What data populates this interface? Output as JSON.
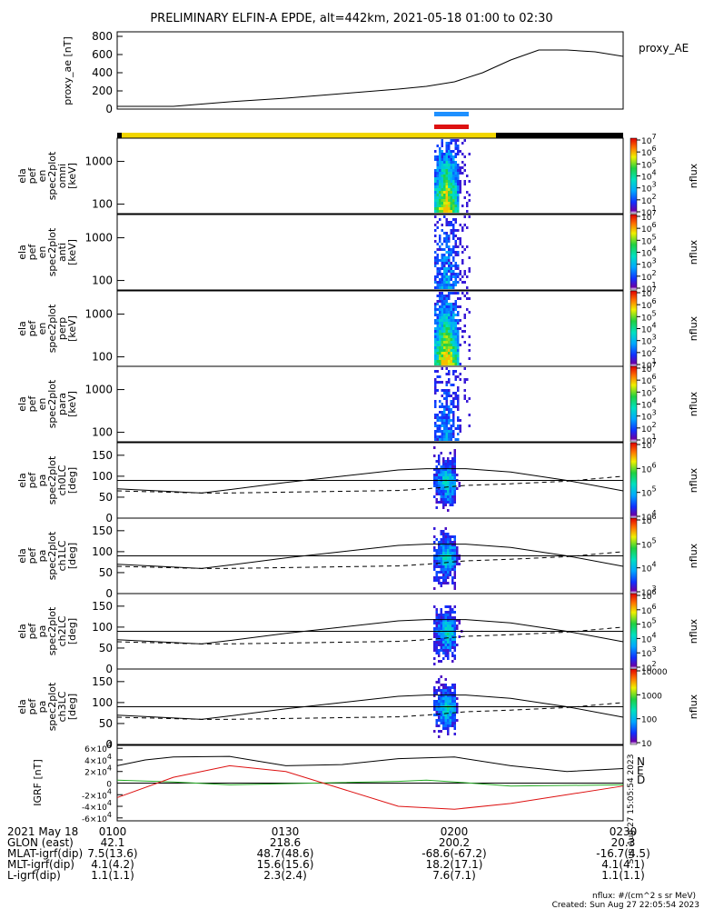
{
  "chart_data": {
    "title": "PRELIMINARY ELFIN-A EPDE, alt=442km, 2021-05-18 01:00 to 02:30",
    "x_time_range": [
      "0100",
      "0230"
    ],
    "ae_panel": {
      "type": "line",
      "ylabel": "proxy_ae [nT]",
      "legend": "proxy_AE",
      "yticks": [
        "0",
        "200",
        "400",
        "600",
        "800"
      ],
      "ylim": [
        0,
        850
      ],
      "x_min": [
        0,
        10,
        20,
        30,
        40,
        50,
        55,
        60,
        65,
        70,
        75,
        80,
        85,
        90
      ],
      "values": [
        30,
        30,
        80,
        120,
        170,
        220,
        250,
        300,
        400,
        540,
        650,
        650,
        630,
        580
      ]
    },
    "spectrogram_panels": [
      {
        "line1": "ela",
        "line2": "pef",
        "line3": "en",
        "line4": "spec2plot",
        "line5": "omni",
        "unit": "[keV]",
        "yticks": [
          "100",
          "1000"
        ],
        "cb_ticks": [
          "10",
          "10",
          "10",
          "10",
          "10",
          "10",
          "10"
        ],
        "cb_exps": [
          "1",
          "2",
          "3",
          "4",
          "5",
          "6",
          "7"
        ],
        "cb_label": "nflux",
        "intensity": 1.0
      },
      {
        "line1": "ela",
        "line2": "pef",
        "line3": "en",
        "line4": "spec2plot",
        "line5": "anti",
        "unit": "[keV]",
        "yticks": [
          "100",
          "1000"
        ],
        "cb_ticks": [
          "10",
          "10",
          "10",
          "10",
          "10",
          "10",
          "10"
        ],
        "cb_exps": [
          "1",
          "2",
          "3",
          "4",
          "5",
          "6",
          "7"
        ],
        "cb_label": "nflux",
        "intensity": 0.35
      },
      {
        "line1": "ela",
        "line2": "pef",
        "line3": "en",
        "line4": "spec2plot",
        "line5": "perp",
        "unit": "[keV]",
        "yticks": [
          "100",
          "1000"
        ],
        "cb_ticks": [
          "10",
          "10",
          "10",
          "10",
          "10",
          "10",
          "10"
        ],
        "cb_exps": [
          "1",
          "2",
          "3",
          "4",
          "5",
          "6",
          "7"
        ],
        "cb_label": "nflux",
        "intensity": 1.0
      },
      {
        "line1": "ela",
        "line2": "pef",
        "line3": "en",
        "line4": "spec2plot",
        "line5": "para",
        "unit": "[keV]",
        "yticks": [
          "100",
          "1000"
        ],
        "cb_ticks": [
          "10",
          "10",
          "10",
          "10",
          "10",
          "10",
          "10"
        ],
        "cb_exps": [
          "1",
          "2",
          "3",
          "4",
          "5",
          "6",
          "7"
        ],
        "cb_label": "nflux",
        "intensity": 0.3
      }
    ],
    "pitch_panels": [
      {
        "line1": "ela",
        "line2": "pef",
        "line3": "pa",
        "line4": "spec2plot",
        "line5": "ch0LC",
        "unit": "[deg]",
        "yticks": [
          "0",
          "50",
          "100",
          "150"
        ],
        "cb_ticks": [
          "10",
          "10",
          "10",
          "10"
        ],
        "cb_exps": [
          "4",
          "5",
          "6",
          "7"
        ],
        "cb_label": "nflux"
      },
      {
        "line1": "ela",
        "line2": "pef",
        "line3": "pa",
        "line4": "spec2plot",
        "line5": "ch1LC",
        "unit": "[deg]",
        "yticks": [
          "0",
          "50",
          "100",
          "150"
        ],
        "cb_ticks": [
          "10",
          "10",
          "10",
          "10"
        ],
        "cb_exps": [
          "3",
          "4",
          "5",
          "6"
        ],
        "cb_label": "nflux"
      },
      {
        "line1": "ela",
        "line2": "pef",
        "line3": "pa",
        "line4": "spec2plot",
        "line5": "ch2LC",
        "unit": "[deg]",
        "yticks": [
          "0",
          "50",
          "100",
          "150"
        ],
        "cb_ticks": [
          "10",
          "10",
          "10",
          "10",
          "10",
          "10"
        ],
        "cb_exps": [
          "2",
          "3",
          "4",
          "5",
          "6",
          "6"
        ],
        "cb_label": "nflux"
      },
      {
        "line1": "ela",
        "line2": "pef",
        "line3": "pa",
        "line4": "spec2plot",
        "line5": "ch3LC",
        "unit": "[deg]",
        "yticks": [
          "0",
          "50",
          "100",
          "150"
        ],
        "cb_ticks": [
          "10",
          "100",
          "1000",
          "10000"
        ],
        "cb_exps": [
          "",
          "",
          "",
          ""
        ],
        "cb_label": "nflux"
      }
    ],
    "igrf_panel": {
      "type": "line",
      "ylabel": "IGRF [nT]",
      "yticks": [
        "-6×10",
        "-4×10",
        "-2×10",
        "0",
        "2×10",
        "4×10",
        "6×10"
      ],
      "ytick_exp": "4",
      "ylim": [
        -65000,
        65000
      ],
      "legend": [
        "N",
        "E",
        "D"
      ],
      "series": [
        {
          "name": "N",
          "x_min": [
            0,
            5,
            10,
            20,
            30,
            40,
            50,
            60,
            70,
            80,
            90
          ],
          "values": [
            30000,
            40000,
            45000,
            46000,
            30000,
            32000,
            42000,
            45000,
            30000,
            20000,
            25000
          ]
        },
        {
          "name": "E",
          "x_min": [
            0,
            10,
            20,
            30,
            40,
            50,
            55,
            60,
            70,
            80,
            90
          ],
          "values": [
            5000,
            2000,
            -3000,
            -1000,
            1000,
            3000,
            5000,
            2000,
            -5000,
            -4000,
            -3000
          ]
        },
        {
          "name": "D",
          "x_min": [
            0,
            10,
            20,
            30,
            40,
            50,
            60,
            70,
            80,
            90
          ],
          "values": [
            -25000,
            10000,
            30000,
            20000,
            -10000,
            -40000,
            -45000,
            -35000,
            -20000,
            -5000
          ]
        }
      ]
    },
    "lc_lines": {
      "x_min": [
        0,
        15,
        20,
        30,
        40,
        50,
        55,
        62,
        70,
        80,
        90
      ],
      "solid": [
        70,
        60,
        68,
        85,
        100,
        115,
        118,
        118,
        110,
        90,
        65
      ],
      "dashed": [
        65,
        60,
        60,
        62,
        64,
        66,
        70,
        78,
        82,
        88,
        100
      ],
      "flat": 90
    }
  },
  "footer": {
    "rows": [
      {
        "label": "2021 May 18",
        "vals": [
          "0100",
          "0130",
          "0200",
          "0230"
        ]
      },
      {
        "label": "GLON (east)",
        "vals": [
          "42.1",
          "218.6",
          "200.2",
          "20.3"
        ]
      },
      {
        "label": "MLAT-igrf(dip)",
        "vals": [
          "7.5(13.6)",
          "48.7(48.6)",
          "-68.6(-67.2)",
          "-16.7(4.5)"
        ]
      },
      {
        "label": "MLT-igrf(dip)",
        "vals": [
          "4.1(4.2)",
          "15.6(15.6)",
          "18.2(17.1)",
          "4.1(4.1)"
        ]
      },
      {
        "label": "L-igrf(dip)",
        "vals": [
          "1.1(1.1)",
          "2.3(2.4)",
          "7.6(7.1)",
          "1.1(1.1)"
        ]
      }
    ],
    "unit_note": "nflux: #/(cm^2 s sr MeV)",
    "created": "Created: Sun Aug 27 22:05:54 2023",
    "side_stamp": "Sun Aug 27 15:05:54 2023"
  },
  "colors": {
    "yellow_bar": "#f2d600",
    "black_bar": "#000000",
    "blue_bar": "#1e90ff",
    "red_bar": "#dd1111",
    "N": "#000000",
    "E": "#22aa22",
    "D": "#dd1111",
    "grid_line": "#000000"
  }
}
